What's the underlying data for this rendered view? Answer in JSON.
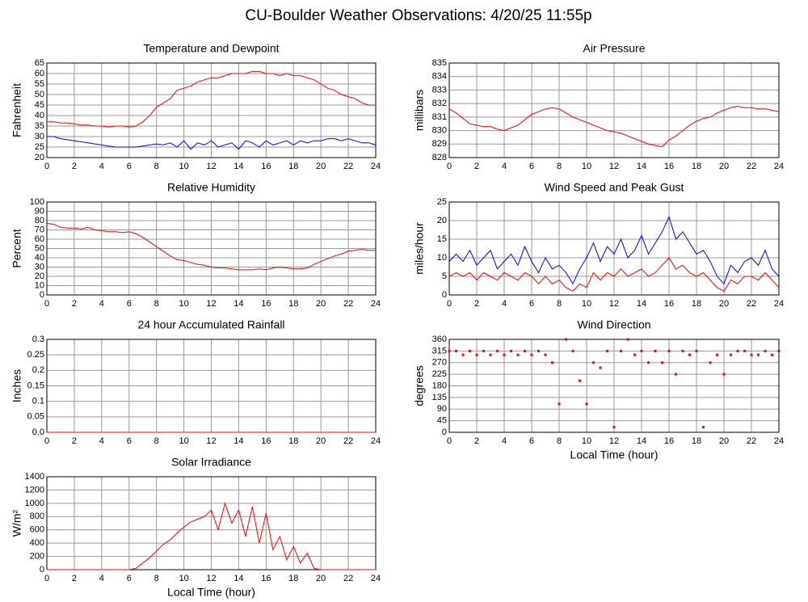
{
  "title": "CU-Boulder Weather Observations: 4/20/25 11:55p",
  "chart_data": [
    {
      "type": "line",
      "title": "Temperature and Dewpoint",
      "ylabel": "Fahrenheit",
      "x": [
        0,
        0.5,
        1,
        1.5,
        2,
        2.5,
        3,
        3.5,
        4,
        4.5,
        5,
        5.5,
        6,
        6.5,
        7,
        7.5,
        8,
        8.5,
        9,
        9.5,
        10,
        10.5,
        11,
        11.5,
        12,
        12.5,
        13,
        13.5,
        14,
        14.5,
        15,
        15.5,
        16,
        16.5,
        17,
        17.5,
        18,
        18.5,
        19,
        19.5,
        20,
        20.5,
        21,
        21.5,
        22,
        22.5,
        23,
        23.5,
        24
      ],
      "series": [
        {
          "color": "#ff0000",
          "values": [
            37,
            37,
            36.5,
            36.5,
            36,
            35.5,
            35.5,
            35,
            35,
            34.5,
            35,
            35,
            34.5,
            35,
            37,
            40,
            44,
            46,
            48,
            52,
            53,
            54,
            56,
            57,
            58,
            58,
            59,
            60,
            60,
            60,
            61,
            61,
            60,
            60,
            59,
            60,
            59,
            59,
            58,
            57,
            55,
            53,
            52,
            50,
            49,
            48,
            46,
            45,
            45
          ]
        },
        {
          "color": "#0000ff",
          "values": [
            30,
            30,
            29,
            28.5,
            28,
            27.5,
            27,
            26.5,
            26,
            25.5,
            25,
            25,
            25,
            25,
            25.5,
            26,
            26.5,
            26,
            27,
            25,
            28,
            24,
            27,
            26,
            28,
            25,
            26,
            27,
            24,
            28,
            27,
            25,
            28,
            26,
            27,
            28,
            26,
            28,
            27,
            28,
            28,
            29,
            29,
            28,
            29,
            28,
            27,
            27,
            26
          ]
        }
      ],
      "xlim": [
        0,
        24
      ],
      "xticks": [
        0,
        2,
        4,
        6,
        8,
        10,
        12,
        14,
        16,
        18,
        20,
        22,
        24
      ],
      "ylim": [
        20,
        65
      ],
      "yticks": [
        20,
        25,
        30,
        35,
        40,
        45,
        50,
        55,
        60,
        65
      ],
      "grid": true
    },
    {
      "type": "line",
      "title": "Air Pressure",
      "ylabel": "millibars",
      "x": [
        0,
        0.5,
        1,
        1.5,
        2,
        2.5,
        3,
        3.5,
        4,
        4.5,
        5,
        5.5,
        6,
        6.5,
        7,
        7.5,
        8,
        8.5,
        9,
        9.5,
        10,
        10.5,
        11,
        11.5,
        12,
        12.5,
        13,
        13.5,
        14,
        14.5,
        15,
        15.5,
        16,
        16.5,
        17,
        17.5,
        18,
        18.5,
        19,
        19.5,
        20,
        20.5,
        21,
        21.5,
        22,
        22.5,
        23,
        23.5,
        24
      ],
      "series": [
        {
          "color": "#ff0000",
          "values": [
            831.6,
            831.3,
            830.9,
            830.5,
            830.4,
            830.3,
            830.3,
            830.1,
            830.0,
            830.2,
            830.4,
            830.8,
            831.2,
            831.4,
            831.6,
            831.7,
            831.6,
            831.3,
            831.0,
            830.8,
            830.6,
            830.4,
            830.2,
            830.0,
            829.9,
            829.8,
            829.6,
            829.4,
            829.2,
            829.0,
            828.9,
            828.8,
            829.3,
            829.6,
            830.0,
            830.4,
            830.7,
            830.9,
            831.0,
            831.3,
            831.5,
            831.7,
            831.8,
            831.7,
            831.7,
            831.6,
            831.6,
            831.5,
            831.4
          ]
        }
      ],
      "xlim": [
        0,
        24
      ],
      "xticks": [
        0,
        2,
        4,
        6,
        8,
        10,
        12,
        14,
        16,
        18,
        20,
        22,
        24
      ],
      "ylim": [
        828,
        835
      ],
      "yticks": [
        828,
        829,
        830,
        831,
        832,
        833,
        834,
        835
      ],
      "grid": true
    },
    {
      "type": "line",
      "title": "Relative Humidity",
      "ylabel": "Percent",
      "x": [
        0,
        0.5,
        1,
        1.5,
        2,
        2.5,
        3,
        3.5,
        4,
        4.5,
        5,
        5.5,
        6,
        6.5,
        7,
        7.5,
        8,
        8.5,
        9,
        9.5,
        10,
        10.5,
        11,
        11.5,
        12,
        12.5,
        13,
        13.5,
        14,
        14.5,
        15,
        15.5,
        16,
        16.5,
        17,
        17.5,
        18,
        18.5,
        19,
        19.5,
        20,
        20.5,
        21,
        21.5,
        22,
        22.5,
        23,
        23.5,
        24
      ],
      "series": [
        {
          "color": "#ff0000",
          "values": [
            77,
            76,
            73,
            72,
            72,
            71,
            73,
            70,
            69,
            68,
            68,
            67,
            68,
            66,
            62,
            57,
            52,
            47,
            42,
            38,
            37,
            35,
            33,
            32,
            30,
            29,
            29,
            28,
            27,
            27,
            27,
            28,
            27,
            29,
            30,
            29,
            28,
            28,
            29,
            33,
            36,
            39,
            42,
            44,
            47,
            48,
            49,
            48,
            48
          ]
        }
      ],
      "xlim": [
        0,
        24
      ],
      "xticks": [
        0,
        2,
        4,
        6,
        8,
        10,
        12,
        14,
        16,
        18,
        20,
        22,
        24
      ],
      "ylim": [
        0,
        100
      ],
      "yticks": [
        0,
        10,
        20,
        30,
        40,
        50,
        60,
        70,
        80,
        90,
        100
      ],
      "grid": true
    },
    {
      "type": "line",
      "title": "Wind Speed and Peak Gust",
      "ylabel": "miles/hour",
      "x": [
        0,
        0.5,
        1,
        1.5,
        2,
        2.5,
        3,
        3.5,
        4,
        4.5,
        5,
        5.5,
        6,
        6.5,
        7,
        7.5,
        8,
        8.5,
        9,
        9.5,
        10,
        10.5,
        11,
        11.5,
        12,
        12.5,
        13,
        13.5,
        14,
        14.5,
        15,
        15.5,
        16,
        16.5,
        17,
        17.5,
        18,
        18.5,
        19,
        19.5,
        20,
        20.5,
        21,
        21.5,
        22,
        22.5,
        23,
        23.5,
        24
      ],
      "series": [
        {
          "color": "#0000ff",
          "values": [
            9,
            11,
            9,
            12,
            8,
            10,
            12,
            7,
            9,
            11,
            8,
            13,
            9,
            6,
            10,
            7,
            8,
            6,
            3,
            7,
            10,
            14,
            9,
            13,
            11,
            15,
            10,
            12,
            16,
            11,
            14,
            17,
            21,
            15,
            17,
            14,
            11,
            12,
            9,
            5,
            3,
            8,
            6,
            9,
            10,
            8,
            12,
            7,
            5
          ]
        },
        {
          "color": "#ff0000",
          "values": [
            5,
            6,
            5,
            6,
            4,
            6,
            5,
            4,
            6,
            5,
            4,
            6,
            5,
            3,
            5,
            3,
            4,
            2,
            1,
            3,
            2,
            6,
            4,
            6,
            5,
            7,
            5,
            6,
            7,
            5,
            6,
            8,
            10,
            7,
            8,
            6,
            5,
            6,
            4,
            2,
            1,
            4,
            3,
            5,
            5,
            4,
            6,
            4,
            2
          ]
        }
      ],
      "xlim": [
        0,
        24
      ],
      "xticks": [
        0,
        2,
        4,
        6,
        8,
        10,
        12,
        14,
        16,
        18,
        20,
        22,
        24
      ],
      "ylim": [
        0,
        25
      ],
      "yticks": [
        0,
        5,
        10,
        15,
        20,
        25
      ],
      "grid": true
    },
    {
      "type": "line",
      "title": "24 hour Accumulated Rainfall",
      "ylabel": "Inches",
      "x": [
        0,
        24
      ],
      "series": [
        {
          "color": "#ff0000",
          "values": [
            0,
            0
          ]
        }
      ],
      "xlim": [
        0,
        24
      ],
      "xticks": [
        0,
        2,
        4,
        6,
        8,
        10,
        12,
        14,
        16,
        18,
        20,
        22,
        24
      ],
      "ylim": [
        0,
        0.3
      ],
      "yticks": [
        {
          "value": 0,
          "label": "0.0"
        },
        0.05,
        0.1,
        0.15,
        0.2,
        0.25,
        0.3
      ],
      "grid": true
    },
    {
      "type": "scatter",
      "title": "Wind Direction",
      "ylabel": "degrees",
      "xlabel": "Local Time (hour)",
      "x": [
        0,
        0.5,
        1,
        1.5,
        2,
        2.5,
        3,
        3.5,
        4,
        4.5,
        5,
        5.5,
        6,
        6.5,
        7,
        7.5,
        8,
        8.5,
        9,
        9.5,
        10,
        10.5,
        11,
        11.5,
        12,
        12.5,
        13,
        13.5,
        14,
        14.5,
        15,
        15.5,
        16,
        16.5,
        17,
        17.5,
        18,
        18.5,
        19,
        19.5,
        20,
        20.5,
        21,
        21.5,
        22,
        22.5,
        23,
        23.5,
        24
      ],
      "series": [
        {
          "color": "#ff0000",
          "values": [
            315,
            315,
            300,
            315,
            300,
            315,
            300,
            315,
            300,
            315,
            300,
            315,
            300,
            315,
            300,
            270,
            110,
            360,
            315,
            200,
            110,
            270,
            250,
            315,
            20,
            315,
            360,
            300,
            315,
            270,
            315,
            270,
            315,
            225,
            315,
            300,
            315,
            20,
            270,
            300,
            225,
            300,
            315,
            315,
            300,
            300,
            315,
            300,
            315
          ]
        }
      ],
      "xlim": [
        0,
        24
      ],
      "xticks": [
        0,
        2,
        4,
        6,
        8,
        10,
        12,
        14,
        16,
        18,
        20,
        22,
        24
      ],
      "ylim": [
        0,
        360
      ],
      "yticks": [
        0,
        45,
        90,
        135,
        180,
        225,
        270,
        315,
        360
      ],
      "grid": true
    },
    {
      "type": "line",
      "title": "Solar Irradiance",
      "ylabel": "W/m²",
      "xlabel": "Local Time (hour)",
      "x": [
        0,
        0.5,
        1,
        1.5,
        2,
        2.5,
        3,
        3.5,
        4,
        4.5,
        5,
        5.5,
        6,
        6.5,
        7,
        7.5,
        8,
        8.5,
        9,
        9.5,
        10,
        10.5,
        11,
        11.5,
        12,
        12.5,
        13,
        13.5,
        14,
        14.5,
        15,
        15.5,
        16,
        16.5,
        17,
        17.5,
        18,
        18.5,
        19,
        19.5,
        20,
        20.5,
        21,
        21.5,
        22,
        22.5,
        23,
        23.5,
        24
      ],
      "series": [
        {
          "color": "#ff0000",
          "values": [
            0,
            0,
            0,
            0,
            0,
            0,
            0,
            0,
            0,
            0,
            0,
            0,
            0,
            20,
            100,
            180,
            280,
            380,
            450,
            550,
            640,
            720,
            760,
            800,
            900,
            600,
            1000,
            700,
            900,
            500,
            950,
            400,
            850,
            300,
            500,
            150,
            350,
            100,
            250,
            20,
            0,
            0,
            0,
            0,
            0,
            0,
            0,
            0,
            0
          ]
        }
      ],
      "xlim": [
        0,
        24
      ],
      "xticks": [
        0,
        2,
        4,
        6,
        8,
        10,
        12,
        14,
        16,
        18,
        20,
        22,
        24
      ],
      "ylim": [
        0,
        1400
      ],
      "yticks": [
        0,
        200,
        400,
        600,
        800,
        1000,
        1200,
        1400
      ],
      "grid": true
    }
  ]
}
